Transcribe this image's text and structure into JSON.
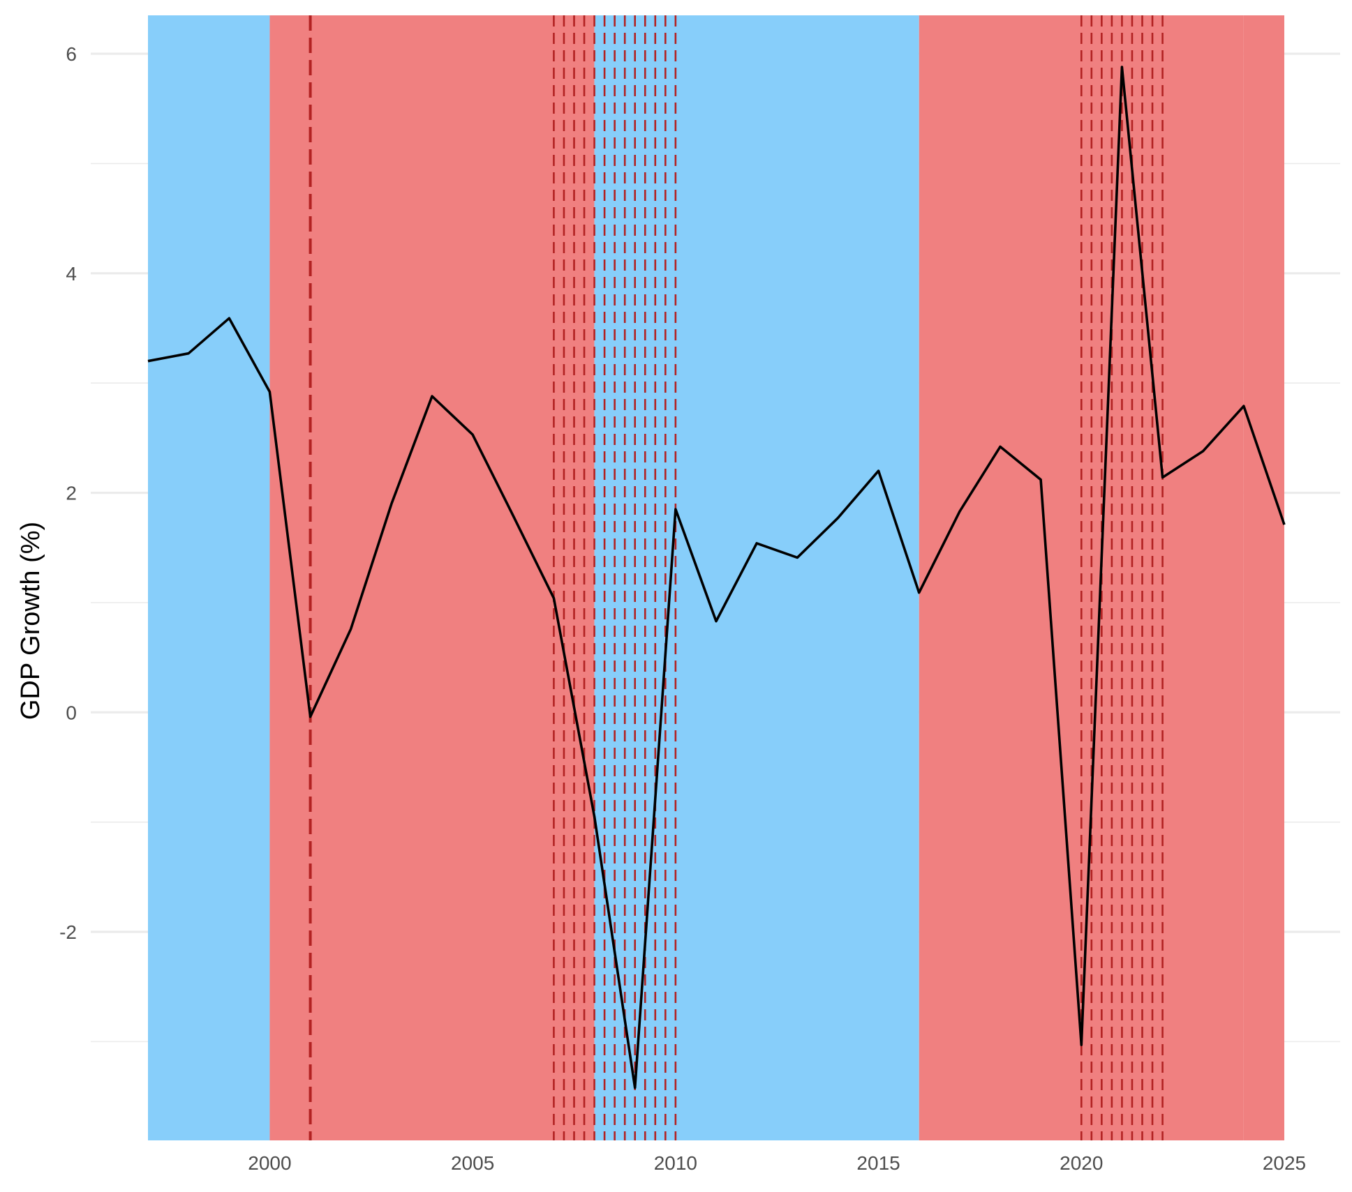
{
  "chart_data": {
    "type": "line",
    "title": "",
    "xlabel": "",
    "ylabel": "GDP Growth (%)",
    "xlim": [
      1997,
      2025
    ],
    "ylim": [
      -3.9,
      6.35
    ],
    "x_ticks": [
      2000,
      2005,
      2010,
      2015,
      2020,
      2025
    ],
    "y_ticks": [
      -2,
      0,
      2,
      4,
      6
    ],
    "grid": true,
    "legend": "none",
    "series": [
      {
        "color": "#000000",
        "x": [
          1997,
          1998,
          1999,
          2000,
          2001,
          2002,
          2003,
          2004,
          2005,
          2006,
          2007,
          2008,
          2009,
          2010,
          2011,
          2012,
          2013,
          2014,
          2015,
          2016,
          2017,
          2018,
          2019,
          2020,
          2021,
          2022,
          2023,
          2024,
          2025
        ],
        "y": [
          3.2,
          3.27,
          3.59,
          2.92,
          -0.04,
          0.76,
          1.9,
          2.88,
          2.53,
          1.79,
          1.04,
          -0.95,
          -3.42,
          1.85,
          0.83,
          1.54,
          1.41,
          1.77,
          2.2,
          1.09,
          1.83,
          2.42,
          2.12,
          -3.03,
          5.88,
          2.14,
          2.38,
          2.79,
          1.71
        ]
      }
    ],
    "shaded_periods": [
      {
        "start": 1997,
        "end": 2000,
        "color": "#87cefa"
      },
      {
        "start": 2000,
        "end": 2008,
        "color": "#f08080"
      },
      {
        "start": 2008,
        "end": 2016,
        "color": "#87cefa"
      },
      {
        "start": 2016,
        "end": 2024,
        "color": "#f08080"
      },
      {
        "start": 2024,
        "end": 2025,
        "color": "#87cefa",
        "comment_color": "#f08080"
      }
    ],
    "recession_markers": {
      "color": "#b22222",
      "x": [
        2001,
        2007,
        2007.25,
        2007.5,
        2007.75,
        2008,
        2008.25,
        2008.5,
        2008.75,
        2009,
        2009.25,
        2009.5,
        2009.75,
        2010,
        2020,
        2020.25,
        2020.5,
        2020.75,
        2021,
        2021.25,
        2021.5,
        2021.75,
        2022
      ]
    }
  }
}
